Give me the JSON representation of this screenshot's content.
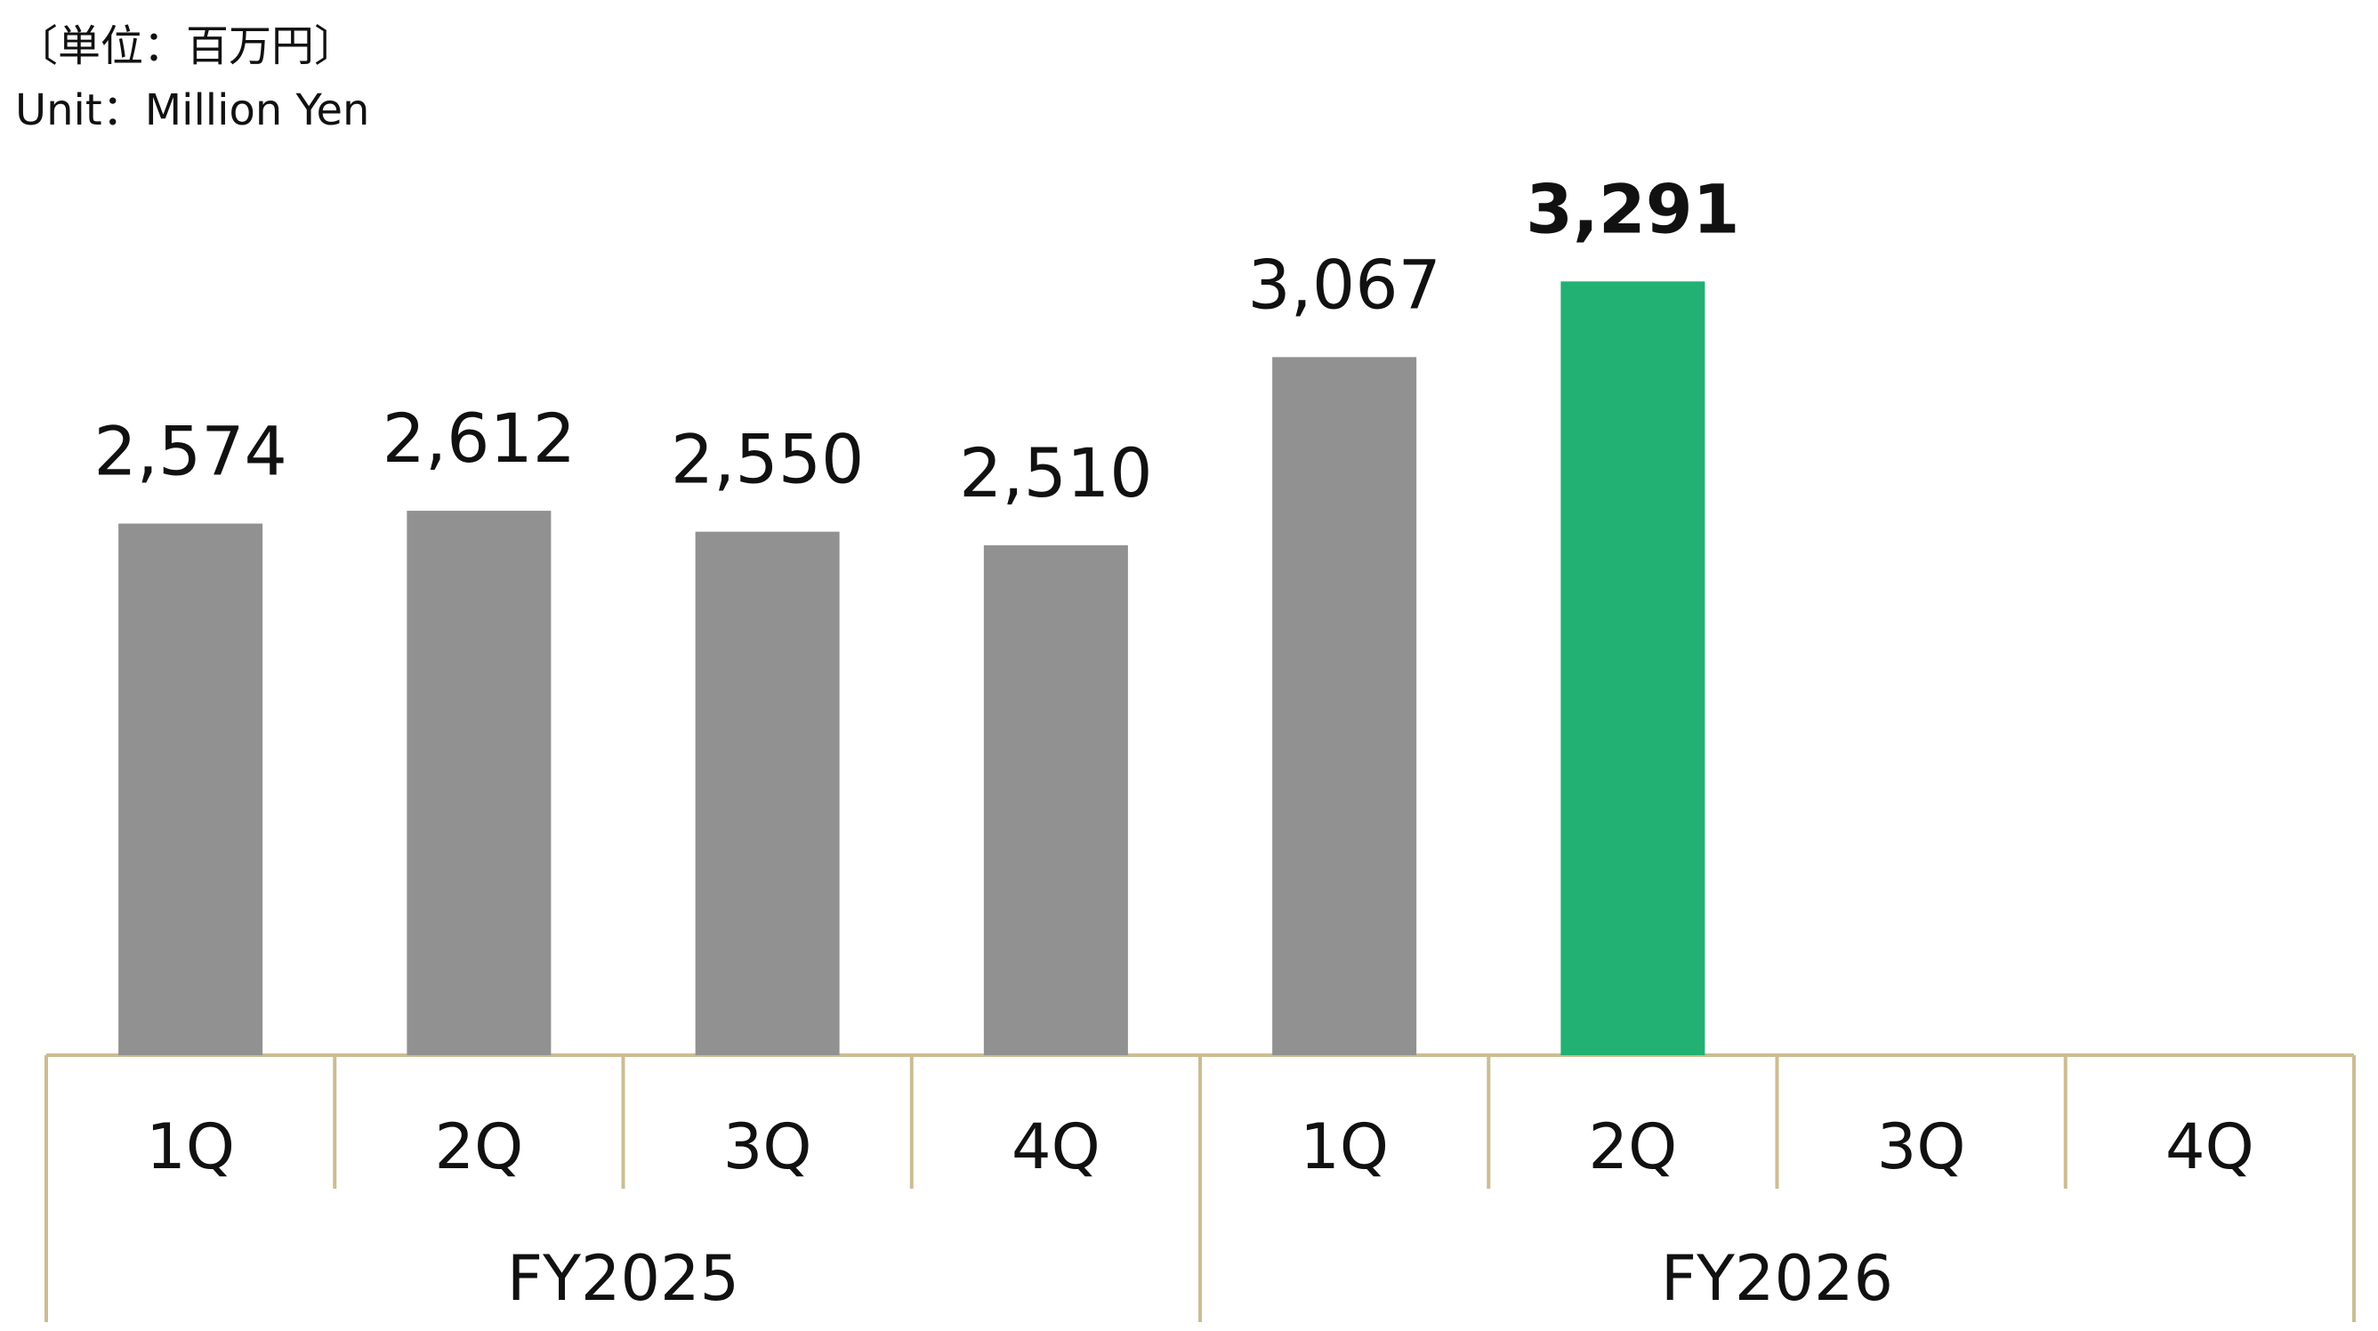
{
  "chart_data": {
    "type": "bar",
    "unit_labels": [
      "〔単位：百万円〕",
      "Unit：Million Yen"
    ],
    "categories": [
      "1Q",
      "2Q",
      "3Q",
      "4Q",
      "1Q",
      "2Q",
      "3Q",
      "4Q"
    ],
    "groups": [
      "FY2025",
      "FY2026"
    ],
    "values": [
      2574,
      2612,
      2550,
      2510,
      3067,
      3291,
      null,
      null
    ],
    "value_labels": [
      "2,574",
      "2,612",
      "2,550",
      "2,510",
      "3,067",
      "3,291",
      null,
      null
    ],
    "color": "#919191",
    "highlight": 5,
    "highlight_color": "#22b073",
    "axis_color": "#cbbd93",
    "ylim": [
      1000,
      3500
    ]
  }
}
